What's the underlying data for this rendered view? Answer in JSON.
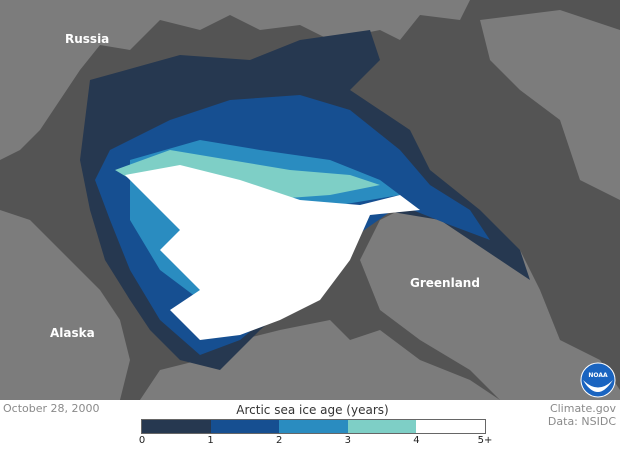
{
  "map": {
    "labels": {
      "russia": "Russia",
      "alaska": "Alaska",
      "greenland": "Greenland"
    },
    "colors": {
      "ocean": "#545454",
      "land": "#7c7c7c"
    }
  },
  "footer": {
    "date": "October 28, 2000",
    "credit_line1": "Climate.gov",
    "credit_line2": "Data: NSIDC"
  },
  "legend": {
    "title": "Arctic sea ice age (years)",
    "bins": [
      {
        "range": "0-1",
        "color": "#263850"
      },
      {
        "range": "1-2",
        "color": "#164f91"
      },
      {
        "range": "2-3",
        "color": "#2a8cc0"
      },
      {
        "range": "3-4",
        "color": "#7ecfc6"
      },
      {
        "range": "4-5+",
        "color": "#ffffff"
      }
    ],
    "ticks": [
      "0",
      "1",
      "2",
      "3",
      "4",
      "5+"
    ]
  },
  "logo": {
    "text": "NOAA"
  }
}
